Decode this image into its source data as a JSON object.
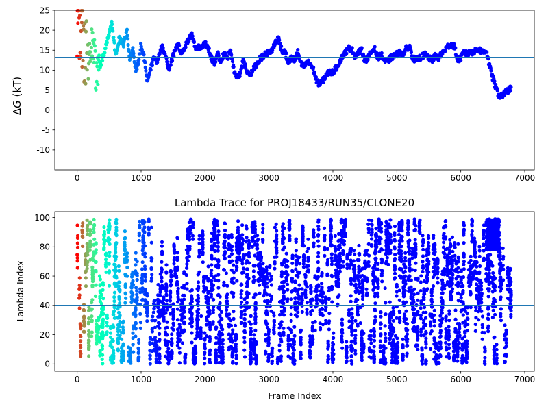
{
  "chart_data": [
    {
      "type": "scatter",
      "title": "",
      "xlabel": "",
      "ylabel_prefix": "Δ",
      "ylabel_var": "G",
      "ylabel_unit": " (kT)",
      "xlim": [
        -350,
        7150
      ],
      "ylim": [
        -15,
        25
      ],
      "xticks": [
        0,
        1000,
        2000,
        3000,
        4000,
        5000,
        6000,
        7000
      ],
      "yticks": [
        -10,
        -5,
        0,
        5,
        10,
        15,
        20,
        25
      ],
      "hline": 13.2,
      "hline_color": "#1f77b4",
      "colormap": "rainbow_r",
      "grid": false,
      "frames_total": 6790,
      "trace": [
        [
          0,
          24.0
        ],
        [
          60,
          20.0
        ],
        [
          120,
          15.0
        ],
        [
          180,
          12.0
        ],
        [
          240,
          17.0
        ],
        [
          300,
          8.0
        ],
        [
          360,
          11.0
        ],
        [
          420,
          14.0
        ],
        [
          480,
          18.0
        ],
        [
          540,
          22.0
        ],
        [
          600,
          14.0
        ],
        [
          660,
          18.0
        ],
        [
          720,
          16.0
        ],
        [
          780,
          20.0
        ],
        [
          820,
          13.0
        ],
        [
          870,
          15.0
        ],
        [
          920,
          10.0
        ],
        [
          960,
          12.0
        ],
        [
          1000,
          16.5
        ],
        [
          1050,
          13.0
        ],
        [
          1100,
          7.0
        ],
        [
          1140,
          10.0
        ],
        [
          1200,
          13.0
        ],
        [
          1260,
          12.0
        ],
        [
          1320,
          16.0
        ],
        [
          1380,
          14.0
        ],
        [
          1430,
          10.0
        ],
        [
          1480,
          12.5
        ],
        [
          1530,
          15.0
        ],
        [
          1580,
          16.5
        ],
        [
          1630,
          14.0
        ],
        [
          1700,
          16.5
        ],
        [
          1760,
          18.0
        ],
        [
          1800,
          19.0
        ],
        [
          1850,
          15.5
        ],
        [
          1900,
          16.0
        ],
        [
          1950,
          15.5
        ],
        [
          2000,
          17.0
        ],
        [
          2050,
          15.5
        ],
        [
          2100,
          13.0
        ],
        [
          2150,
          11.5
        ],
        [
          2200,
          14.0
        ],
        [
          2250,
          12.0
        ],
        [
          2300,
          14.5
        ],
        [
          2350,
          13.0
        ],
        [
          2400,
          15.0
        ],
        [
          2450,
          10.0
        ],
        [
          2500,
          8.5
        ],
        [
          2550,
          9.0
        ],
        [
          2600,
          12.5
        ],
        [
          2650,
          10.0
        ],
        [
          2700,
          8.5
        ],
        [
          2750,
          10.0
        ],
        [
          2800,
          11.5
        ],
        [
          2850,
          12.5
        ],
        [
          2900,
          13.5
        ],
        [
          2950,
          14.0
        ],
        [
          3000,
          14.5
        ],
        [
          3050,
          15.0
        ],
        [
          3100,
          17.0
        ],
        [
          3150,
          18.0
        ],
        [
          3200,
          15.0
        ],
        [
          3250,
          14.5
        ],
        [
          3300,
          12.0
        ],
        [
          3350,
          13.0
        ],
        [
          3400,
          12.5
        ],
        [
          3450,
          14.5
        ],
        [
          3500,
          11.5
        ],
        [
          3550,
          11.0
        ],
        [
          3600,
          12.0
        ],
        [
          3650,
          11.5
        ],
        [
          3700,
          10.0
        ],
        [
          3750,
          7.0
        ],
        [
          3800,
          6.5
        ],
        [
          3850,
          7.5
        ],
        [
          3900,
          9.0
        ],
        [
          3950,
          9.5
        ],
        [
          4000,
          9.5
        ],
        [
          4050,
          10.5
        ],
        [
          4100,
          12.0
        ],
        [
          4150,
          13.5
        ],
        [
          4200,
          14.5
        ],
        [
          4250,
          15.5
        ],
        [
          4300,
          15.0
        ],
        [
          4350,
          13.5
        ],
        [
          4400,
          14.5
        ],
        [
          4450,
          15.0
        ],
        [
          4500,
          12.5
        ],
        [
          4550,
          13.0
        ],
        [
          4600,
          14.5
        ],
        [
          4650,
          15.5
        ],
        [
          4700,
          13.0
        ],
        [
          4750,
          14.0
        ],
        [
          4800,
          12.5
        ],
        [
          4850,
          12.0
        ],
        [
          4900,
          13.0
        ],
        [
          4950,
          13.5
        ],
        [
          5000,
          14.0
        ],
        [
          5050,
          14.5
        ],
        [
          5100,
          14.0
        ],
        [
          5150,
          15.5
        ],
        [
          5200,
          16.0
        ],
        [
          5250,
          13.0
        ],
        [
          5300,
          12.5
        ],
        [
          5350,
          13.0
        ],
        [
          5400,
          13.5
        ],
        [
          5450,
          14.0
        ],
        [
          5500,
          13.0
        ],
        [
          5550,
          12.5
        ],
        [
          5600,
          13.5
        ],
        [
          5650,
          13.0
        ],
        [
          5700,
          14.0
        ],
        [
          5750,
          15.0
        ],
        [
          5800,
          16.0
        ],
        [
          5850,
          16.5
        ],
        [
          5900,
          16.0
        ],
        [
          5950,
          12.5
        ],
        [
          6000,
          13.0
        ],
        [
          6050,
          14.5
        ],
        [
          6100,
          14.0
        ],
        [
          6150,
          14.5
        ],
        [
          6200,
          14.5
        ],
        [
          6250,
          15.0
        ],
        [
          6300,
          15.0
        ],
        [
          6350,
          14.5
        ],
        [
          6400,
          15.0
        ],
        [
          6450,
          11.0
        ],
        [
          6500,
          8.0
        ],
        [
          6550,
          5.5
        ],
        [
          6600,
          3.5
        ],
        [
          6650,
          3.5
        ],
        [
          6700,
          4.5
        ],
        [
          6750,
          5.0
        ],
        [
          6790,
          5.5
        ]
      ]
    },
    {
      "type": "scatter",
      "title": "Lambda Trace for PROJ18433/RUN35/CLONE20",
      "xlabel": "Frame Index",
      "ylabel": "Lambda Index",
      "xlim": [
        -350,
        7150
      ],
      "ylim": [
        -5,
        104
      ],
      "xticks": [
        0,
        1000,
        2000,
        3000,
        4000,
        5000,
        6000,
        7000
      ],
      "yticks": [
        0,
        20,
        40,
        60,
        80,
        100
      ],
      "hline": 40,
      "hline_color": "#1f77b4",
      "colormap": "rainbow_r",
      "grid": false,
      "frames_total": 6790,
      "lambda_range": [
        0,
        99
      ],
      "dense_region": [
        6400,
        6600,
        78,
        99
      ]
    }
  ]
}
